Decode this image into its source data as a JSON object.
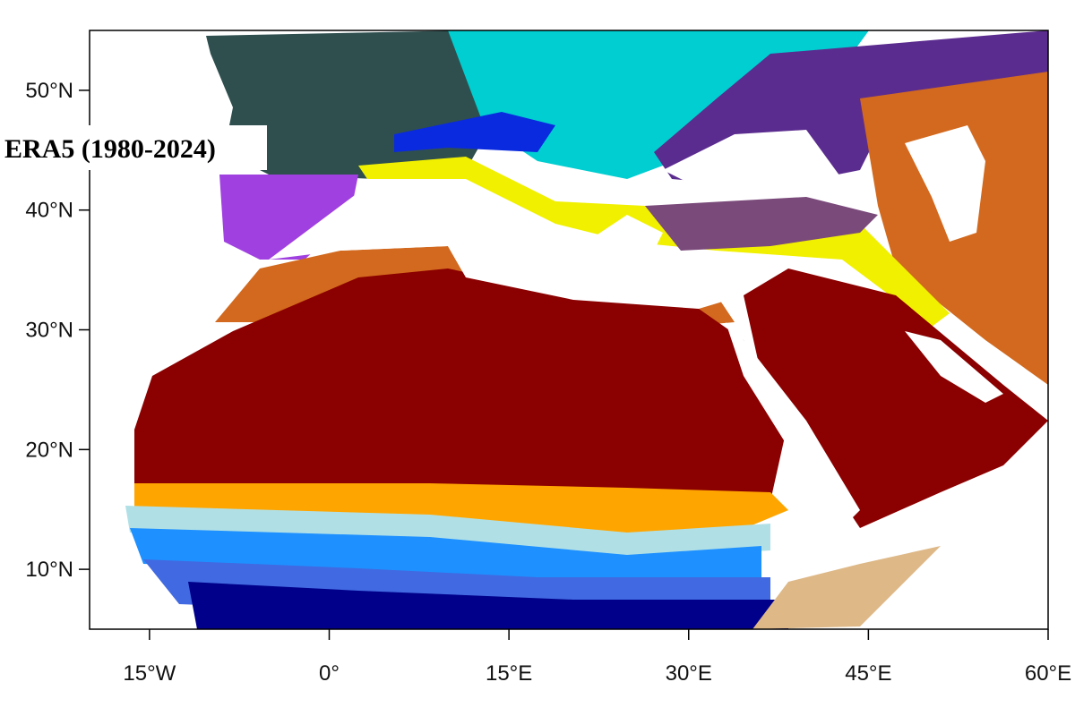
{
  "title": "ERA5 (1980-2024)",
  "map": {
    "xlim": [
      -20,
      60
    ],
    "ylim": [
      5,
      55
    ],
    "xticks": [
      {
        "value": -15,
        "label": "15°W"
      },
      {
        "value": 0,
        "label": "0°"
      },
      {
        "value": 15,
        "label": "15°E"
      },
      {
        "value": 30,
        "label": "30°E"
      },
      {
        "value": 45,
        "label": "45°E"
      },
      {
        "value": 60,
        "label": "60°E"
      }
    ],
    "yticks": [
      {
        "value": 10,
        "label": "10°N"
      },
      {
        "value": 20,
        "label": "20°N"
      },
      {
        "value": 30,
        "label": "30°N"
      },
      {
        "value": 40,
        "label": "40°N"
      },
      {
        "value": 50,
        "label": "50°N"
      }
    ]
  }
}
